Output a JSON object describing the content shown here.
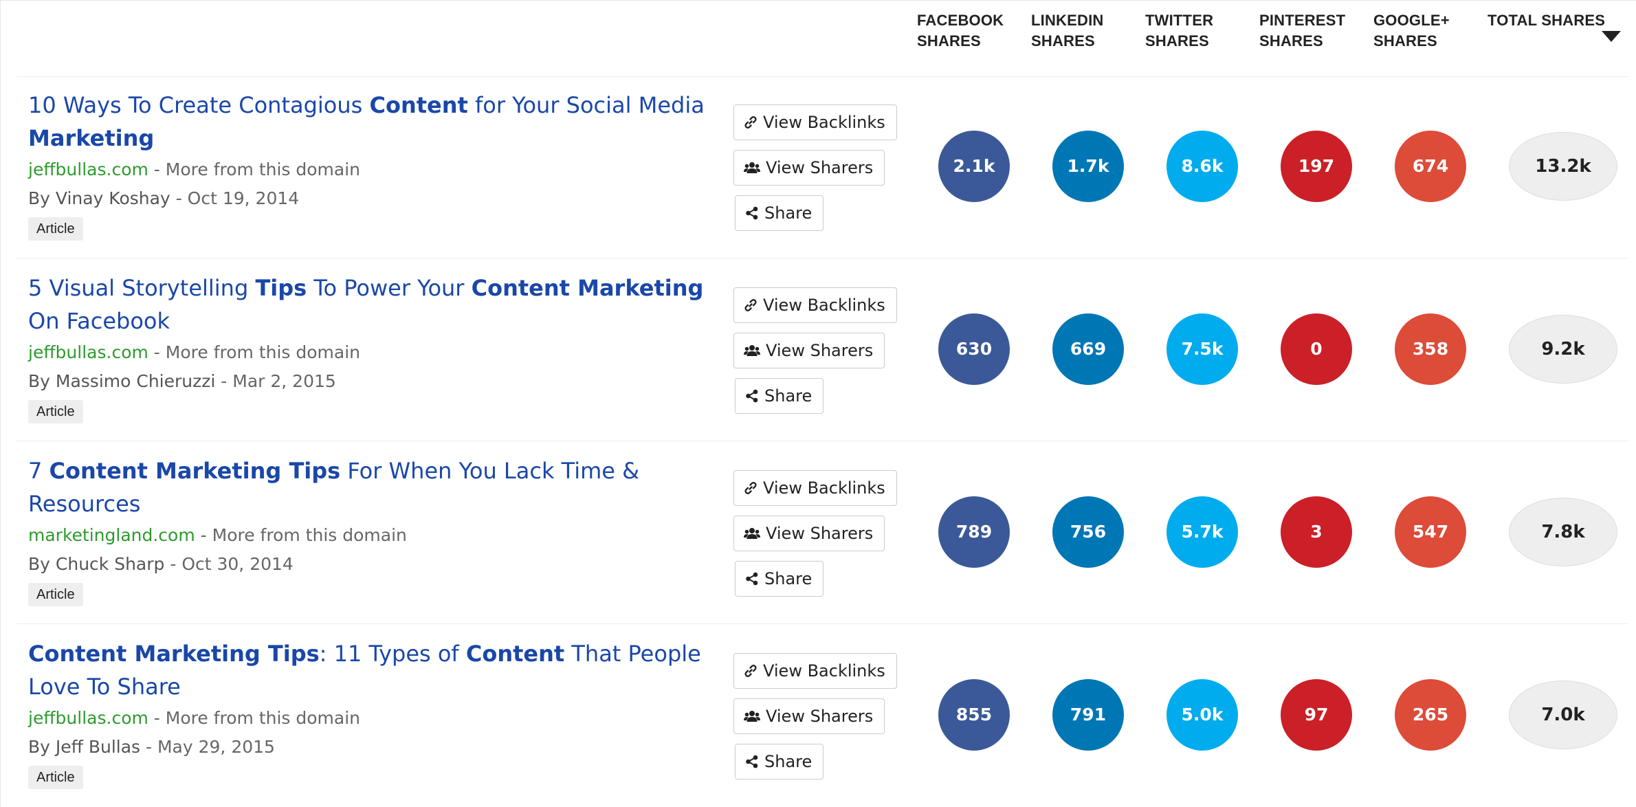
{
  "header": {
    "columns": [
      "FACEBOOK\nSHARES",
      "LINKEDIN\nSHARES",
      "TWITTER\nSHARES",
      "PINTEREST\nSHARES",
      "GOOGLE+\nSHARES",
      "TOTAL SHARES"
    ],
    "sort_icon": "caret-down-icon"
  },
  "buttons": {
    "view_backlinks": "View Backlinks",
    "view_sharers": "View Sharers",
    "share": "Share",
    "icons": [
      "link-icon",
      "users-icon",
      "share-icon"
    ]
  },
  "colors": {
    "facebook": "#3b5998",
    "linkedin": "#0077b5",
    "twitter": "#00aced",
    "pinterest": "#cb2027",
    "googleplus": "#dd4b39",
    "link": "#1a47a8",
    "domain": "#2e9a2e"
  },
  "rows": [
    {
      "title_parts": [
        {
          "text": "10 Ways To Create Contagious ",
          "bold": false
        },
        {
          "text": "Content",
          "bold": true
        },
        {
          "text": " for Your Social Media ",
          "bold": false
        },
        {
          "text": "Marketing",
          "bold": true
        }
      ],
      "domain": "jeffbullas.com",
      "more": "More from this domain",
      "author": "By Vinay Koshay",
      "date": "Oct 19, 2014",
      "type": "Article",
      "shares": {
        "facebook": "2.1k",
        "linkedin": "1.7k",
        "twitter": "8.6k",
        "pinterest": "197",
        "googleplus": "674",
        "total": "13.2k"
      }
    },
    {
      "title_parts": [
        {
          "text": "5 Visual Storytelling ",
          "bold": false
        },
        {
          "text": "Tips",
          "bold": true
        },
        {
          "text": " To Power Your ",
          "bold": false
        },
        {
          "text": "Content Marketing",
          "bold": true
        },
        {
          "text": " On Facebook",
          "bold": false
        }
      ],
      "domain": "jeffbullas.com",
      "more": "More from this domain",
      "author": "By Massimo Chieruzzi",
      "date": "Mar 2, 2015",
      "type": "Article",
      "shares": {
        "facebook": "630",
        "linkedin": "669",
        "twitter": "7.5k",
        "pinterest": "0",
        "googleplus": "358",
        "total": "9.2k"
      }
    },
    {
      "title_parts": [
        {
          "text": "7 ",
          "bold": false
        },
        {
          "text": "Content Marketing Tips",
          "bold": true
        },
        {
          "text": " For When You Lack Time & Resources",
          "bold": false
        }
      ],
      "domain": "marketingland.com",
      "more": "More from this domain",
      "author": "By Chuck Sharp",
      "date": "Oct 30, 2014",
      "type": "Article",
      "shares": {
        "facebook": "789",
        "linkedin": "756",
        "twitter": "5.7k",
        "pinterest": "3",
        "googleplus": "547",
        "total": "7.8k"
      }
    },
    {
      "title_parts": [
        {
          "text": "Content Marketing Tips",
          "bold": true
        },
        {
          "text": ": 11 Types of ",
          "bold": false
        },
        {
          "text": "Content",
          "bold": true
        },
        {
          "text": " That People Love To Share",
          "bold": false
        }
      ],
      "domain": "jeffbullas.com",
      "more": "More from this domain",
      "author": "By Jeff Bullas",
      "date": "May 29, 2015",
      "type": "Article",
      "shares": {
        "facebook": "855",
        "linkedin": "791",
        "twitter": "5.0k",
        "pinterest": "97",
        "googleplus": "265",
        "total": "7.0k"
      }
    }
  ]
}
